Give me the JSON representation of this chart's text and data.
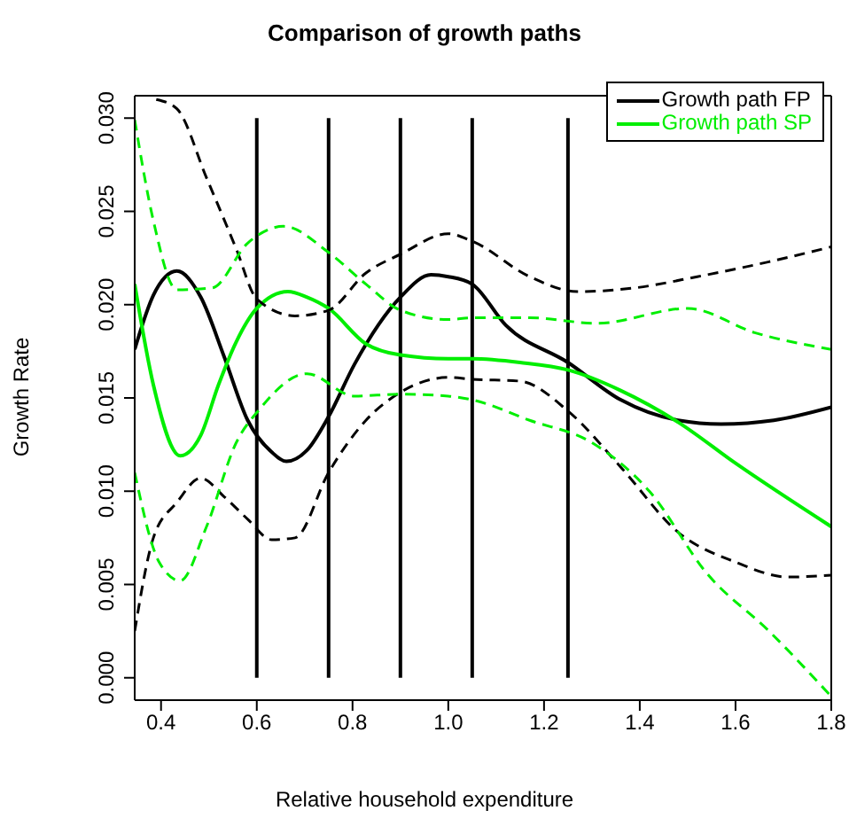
{
  "chart_data": {
    "type": "line",
    "title": "Comparison of growth paths",
    "xlabel": "Relative household expenditure",
    "ylabel": "Growth Rate",
    "xlim": [
      0.345,
      1.8
    ],
    "xticks": [
      {
        "value": 0.4,
        "label": "0.4"
      },
      {
        "value": 0.6,
        "label": "0.6"
      },
      {
        "value": 0.8,
        "label": "0.8"
      },
      {
        "value": 1.0,
        "label": "1.0"
      },
      {
        "value": 1.2,
        "label": "1.2"
      },
      {
        "value": 1.4,
        "label": "1.4"
      },
      {
        "value": 1.6,
        "label": "1.6"
      },
      {
        "value": 1.8,
        "label": "1.8"
      }
    ],
    "ylim": [
      -0.0012,
      0.0312
    ],
    "yticks": [
      {
        "value": 0,
        "label": "0.000"
      },
      {
        "value": 0.005,
        "label": "0.005"
      },
      {
        "value": 0.01,
        "label": "0.010"
      },
      {
        "value": 0.015,
        "label": "0.015"
      },
      {
        "value": 0.02,
        "label": "0.020"
      },
      {
        "value": 0.025,
        "label": "0.025"
      },
      {
        "value": 0.03,
        "label": "0.030"
      }
    ],
    "legend": "top right",
    "marker": "none",
    "ref_lines": [
      {
        "axis": "x",
        "value": 0.6,
        "color": "#000000"
      },
      {
        "axis": "x",
        "value": 0.75,
        "color": "#000000"
      },
      {
        "axis": "x",
        "value": 0.9,
        "color": "#000000"
      },
      {
        "axis": "x",
        "value": 1.05,
        "color": "#000000"
      },
      {
        "axis": "x",
        "value": 1.25,
        "color": "#000000"
      }
    ],
    "series": [
      {
        "name": "Growth path FP",
        "color": "#000000",
        "line_style": "solid",
        "x": [
          0.345,
          0.384,
          0.433,
          0.483,
          0.532,
          0.581,
          0.631,
          0.662,
          0.705,
          0.75,
          0.804,
          0.9,
          0.964,
          1.0,
          1.05,
          1.12,
          1.25,
          1.36,
          1.48,
          1.57,
          1.68,
          1.8
        ],
        "values": [
          0.0176,
          0.0205,
          0.0218,
          0.0204,
          0.0172,
          0.0138,
          0.0121,
          0.0116,
          0.0122,
          0.014,
          0.0168,
          0.0204,
          0.0216,
          0.0215,
          0.0211,
          0.0189,
          0.0169,
          0.0149,
          0.0138,
          0.0136,
          0.0138,
          0.0145
        ]
      },
      {
        "name": "Growth path SP",
        "color": "#00ee00",
        "line_style": "solid",
        "x": [
          0.345,
          0.384,
          0.44,
          0.483,
          0.52,
          0.557,
          0.6,
          0.665,
          0.705,
          0.75,
          0.828,
          0.9,
          1.0,
          1.05,
          1.15,
          1.25,
          1.36,
          1.48,
          1.6,
          1.8
        ],
        "values": [
          0.0211,
          0.0157,
          0.0119,
          0.013,
          0.0157,
          0.018,
          0.0198,
          0.0207,
          0.0204,
          0.0198,
          0.0179,
          0.0173,
          0.0171,
          0.0171,
          0.0169,
          0.0165,
          0.0154,
          0.0137,
          0.0115,
          0.0081
        ]
      },
      {
        "color": "#000000",
        "line_style": "dashed",
        "x": [
          0.39,
          0.433,
          0.495,
          0.557,
          0.6,
          0.68,
          0.75,
          0.828,
          0.9,
          1.0,
          1.05,
          1.17,
          1.27,
          1.39,
          1.52,
          1.67,
          1.8
        ],
        "values": [
          0.031,
          0.0305,
          0.0268,
          0.023,
          0.0203,
          0.0194,
          0.0197,
          0.0217,
          0.0227,
          0.0238,
          0.0234,
          0.0215,
          0.0207,
          0.0209,
          0.0215,
          0.0223,
          0.0231
        ]
      },
      {
        "color": "#000000",
        "line_style": "dashed",
        "x": [
          0.345,
          0.384,
          0.433,
          0.483,
          0.532,
          0.581,
          0.631,
          0.68,
          0.75,
          0.828,
          0.9,
          1.0,
          1.05,
          1.15,
          1.25,
          1.36,
          1.48,
          1.6,
          1.71,
          1.8
        ],
        "values": [
          0.0025,
          0.0075,
          0.0094,
          0.0107,
          0.0097,
          0.0085,
          0.0074,
          0.0075,
          0.011,
          0.0138,
          0.0153,
          0.0161,
          0.016,
          0.0159,
          0.0143,
          0.0113,
          0.0078,
          0.0062,
          0.0054,
          0.0055
        ]
      },
      {
        "color": "#00ee00",
        "line_style": "dashed",
        "x": [
          0.345,
          0.384,
          0.433,
          0.507,
          0.581,
          0.656,
          0.75,
          0.828,
          0.9,
          1.0,
          1.05,
          1.17,
          1.31,
          1.5,
          1.64,
          1.8
        ],
        "values": [
          0.0299,
          0.0245,
          0.0208,
          0.0209,
          0.0233,
          0.0242,
          0.0228,
          0.0211,
          0.0197,
          0.0192,
          0.0193,
          0.0193,
          0.019,
          0.0198,
          0.0185,
          0.0176
        ]
      },
      {
        "color": "#00ee00",
        "line_style": "dashed",
        "x": [
          0.345,
          0.396,
          0.44,
          0.495,
          0.557,
          0.606,
          0.705,
          0.804,
          0.9,
          1.0,
          1.05,
          1.17,
          1.3,
          1.42,
          1.54,
          1.67,
          1.8
        ],
        "values": [
          0.011,
          0.0062,
          0.0052,
          0.0081,
          0.0126,
          0.0144,
          0.0163,
          0.0151,
          0.0152,
          0.0151,
          0.0149,
          0.0138,
          0.0126,
          0.01,
          0.0056,
          0.0025,
          -0.001
        ]
      }
    ]
  }
}
